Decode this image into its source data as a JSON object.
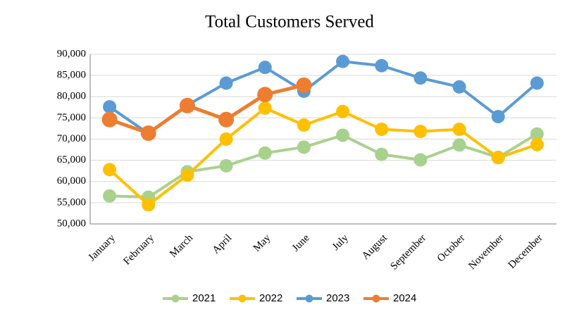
{
  "chart_data": {
    "type": "line",
    "title": "Total Customers Served",
    "categories": [
      "January",
      "February",
      "March",
      "April",
      "May",
      "June",
      "July",
      "August",
      "September",
      "October",
      "November",
      "December"
    ],
    "series": [
      {
        "name": "2021",
        "color": "#a9d18e",
        "values": [
          56600,
          56300,
          62300,
          63700,
          66700,
          68100,
          70900,
          66400,
          65100,
          68600,
          65700,
          71200
        ]
      },
      {
        "name": "2022",
        "color": "#ffc000",
        "values": [
          62800,
          54500,
          61500,
          70000,
          77300,
          73300,
          76500,
          72300,
          71800,
          72300,
          65600,
          68700
        ]
      },
      {
        "name": "2023",
        "color": "#5b9bd5",
        "values": [
          77600,
          71300,
          78000,
          83200,
          86900,
          81300,
          88300,
          87300,
          84400,
          82300,
          75300,
          83200
        ]
      },
      {
        "name": "2024",
        "color": "#ed7d31",
        "values": [
          74600,
          71400,
          77900,
          74600,
          80500,
          82700,
          null,
          null,
          null,
          null,
          null,
          null
        ]
      }
    ],
    "ylim": [
      50000,
      90000
    ],
    "yticks": [
      {
        "value": 50000,
        "label": "50,000"
      },
      {
        "value": 55000,
        "label": "55,000"
      },
      {
        "value": 60000,
        "label": "60,000"
      },
      {
        "value": 65000,
        "label": "65,000"
      },
      {
        "value": 70000,
        "label": "70,000"
      },
      {
        "value": 75000,
        "label": "75,000"
      },
      {
        "value": 80000,
        "label": "80,000"
      },
      {
        "value": 85000,
        "label": "85,000"
      },
      {
        "value": 90000,
        "label": "90,000"
      }
    ],
    "grid": true,
    "legend": "bottom"
  }
}
